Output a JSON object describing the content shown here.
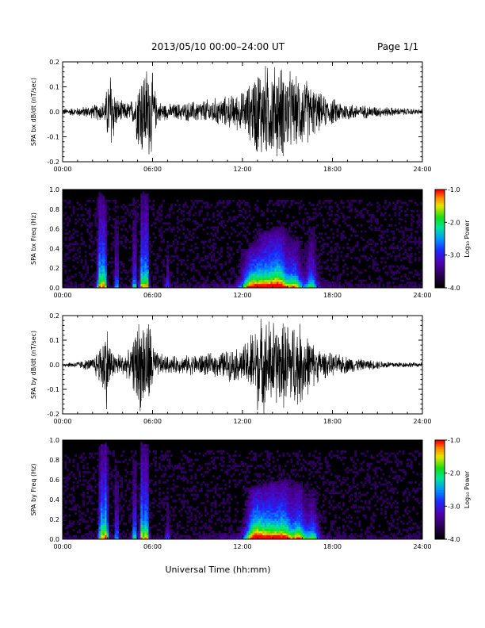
{
  "header": {
    "title": "2013/05/10   00:00–24:00 UT",
    "page": "Page 1/1"
  },
  "chart_data": [
    {
      "type": "line",
      "title": "",
      "ylabel": "SPA bx dB/dt (nT/sec)",
      "xlabel": "",
      "x_range": [
        "00:00",
        "24:00"
      ],
      "ylim": [
        -0.2,
        0.2
      ],
      "y_ticks": [
        "-0.2",
        "-0.1",
        "0.0",
        "0.1",
        "0.2"
      ],
      "x_ticks": [
        "00:00",
        "06:00",
        "12:00",
        "18:00",
        "24:00"
      ],
      "envelope": {
        "hours": [
          0,
          1,
          2,
          2.8,
          3.2,
          3.6,
          4.2,
          4.8,
          5.1,
          5.5,
          5.9,
          6.3,
          7,
          8,
          9,
          10,
          11,
          12,
          12.5,
          13,
          13.5,
          14,
          14.5,
          15,
          15.5,
          16,
          16.5,
          17,
          17.5,
          18,
          19,
          20,
          21,
          22,
          23,
          24
        ],
        "amplitude": [
          0.015,
          0.02,
          0.03,
          0.05,
          0.21,
          0.06,
          0.04,
          0.06,
          0.2,
          0.21,
          0.21,
          0.05,
          0.035,
          0.04,
          0.05,
          0.06,
          0.07,
          0.09,
          0.13,
          0.21,
          0.21,
          0.21,
          0.21,
          0.2,
          0.15,
          0.17,
          0.13,
          0.09,
          0.07,
          0.06,
          0.04,
          0.03,
          0.025,
          0.02,
          0.015,
          0.012
        ]
      },
      "grid": false
    },
    {
      "type": "heatmap",
      "title": "",
      "ylabel": "SPA bx Freq (Hz)",
      "xlabel": "",
      "x_range": [
        "00:00",
        "24:00"
      ],
      "ylim": [
        0.0,
        1.0
      ],
      "y_ticks": [
        "0.0",
        "0.2",
        "0.4",
        "0.6",
        "0.8",
        "1.0"
      ],
      "x_ticks": [
        "00:00",
        "06:00",
        "12:00",
        "18:00",
        "24:00"
      ],
      "colorbar": {
        "label": "Log₁₀ Power",
        "range": [
          -4.0,
          -1.0
        ],
        "ticks": [
          "-1.0",
          "-2.0",
          "-3.0",
          "-4.0"
        ]
      },
      "bursts": [
        {
          "hour": 2.5,
          "width": 0.2,
          "strength": 0.8,
          "height": 0.95
        },
        {
          "hour": 2.8,
          "width": 0.15,
          "strength": 0.75,
          "height": 0.9
        },
        {
          "hour": 3.6,
          "width": 0.12,
          "strength": 0.5,
          "height": 0.9
        },
        {
          "hour": 4.8,
          "width": 0.15,
          "strength": 0.55,
          "height": 0.9
        },
        {
          "hour": 5.3,
          "width": 0.15,
          "strength": 0.8,
          "height": 0.95
        },
        {
          "hour": 5.6,
          "width": 0.15,
          "strength": 0.85,
          "height": 0.95
        },
        {
          "hour": 7.0,
          "width": 0.15,
          "strength": 0.3,
          "height": 0.6
        },
        {
          "hour": 12.5,
          "width": 0.6,
          "strength": 0.6,
          "height": 0.4
        },
        {
          "hour": 13.5,
          "width": 0.8,
          "strength": 0.75,
          "height": 0.55
        },
        {
          "hour": 14.5,
          "width": 0.6,
          "strength": 0.7,
          "height": 0.6
        },
        {
          "hour": 15.5,
          "width": 0.5,
          "strength": 0.6,
          "height": 0.5
        },
        {
          "hour": 16.6,
          "width": 0.4,
          "strength": 0.5,
          "height": 0.6
        }
      ]
    },
    {
      "type": "line",
      "title": "",
      "ylabel": "SPA by dB/dt (nT/sec)",
      "xlabel": "",
      "x_range": [
        "00:00",
        "24:00"
      ],
      "ylim": [
        -0.2,
        0.2
      ],
      "y_ticks": [
        "-0.2",
        "-0.1",
        "0.0",
        "0.1",
        "0.2"
      ],
      "x_ticks": [
        "00:00",
        "06:00",
        "12:00",
        "18:00",
        "24:00"
      ],
      "envelope": {
        "hours": [
          0,
          1,
          2,
          2.5,
          2.9,
          3.3,
          4,
          4.6,
          5.0,
          5.4,
          5.8,
          6.2,
          7,
          8,
          9,
          10,
          11,
          12,
          12.5,
          13,
          13.5,
          14,
          14.5,
          15,
          15.5,
          16,
          16.5,
          17,
          17.5,
          18,
          19,
          20,
          21,
          22,
          23,
          24
        ],
        "amplitude": [
          0.01,
          0.015,
          0.03,
          0.09,
          0.21,
          0.06,
          0.05,
          0.07,
          0.21,
          0.21,
          0.21,
          0.06,
          0.04,
          0.04,
          0.05,
          0.05,
          0.07,
          0.08,
          0.14,
          0.21,
          0.21,
          0.21,
          0.18,
          0.21,
          0.2,
          0.18,
          0.12,
          0.08,
          0.06,
          0.05,
          0.04,
          0.025,
          0.02,
          0.015,
          0.012,
          0.01
        ]
      },
      "grid": false
    },
    {
      "type": "heatmap",
      "title": "",
      "ylabel": "SPA by Freq (Hz)",
      "xlabel": "Universal Time (hh:mm)",
      "x_range": [
        "00:00",
        "24:00"
      ],
      "ylim": [
        0.0,
        1.0
      ],
      "y_ticks": [
        "0.0",
        "0.2",
        "0.4",
        "0.6",
        "0.8",
        "1.0"
      ],
      "x_ticks": [
        "00:00",
        "06:00",
        "12:00",
        "18:00",
        "24:00"
      ],
      "colorbar": {
        "label": "Log₁₀ Power",
        "range": [
          -4.0,
          -1.0
        ],
        "ticks": [
          "-1.0",
          "-2.0",
          "-3.0",
          "-4.0"
        ]
      },
      "bursts": [
        {
          "hour": 2.6,
          "width": 0.2,
          "strength": 0.8,
          "height": 0.95
        },
        {
          "hour": 2.9,
          "width": 0.15,
          "strength": 0.8,
          "height": 0.95
        },
        {
          "hour": 3.6,
          "width": 0.12,
          "strength": 0.5,
          "height": 0.9
        },
        {
          "hour": 4.8,
          "width": 0.15,
          "strength": 0.6,
          "height": 0.9
        },
        {
          "hour": 5.3,
          "width": 0.15,
          "strength": 0.85,
          "height": 0.95
        },
        {
          "hour": 5.6,
          "width": 0.15,
          "strength": 0.85,
          "height": 0.95
        },
        {
          "hour": 7.0,
          "width": 0.15,
          "strength": 0.3,
          "height": 0.6
        },
        {
          "hour": 12.8,
          "width": 0.6,
          "strength": 0.8,
          "height": 0.5
        },
        {
          "hour": 13.8,
          "width": 0.7,
          "strength": 0.75,
          "height": 0.55
        },
        {
          "hour": 14.8,
          "width": 0.6,
          "strength": 0.7,
          "height": 0.6
        },
        {
          "hour": 15.8,
          "width": 0.5,
          "strength": 0.65,
          "height": 0.55
        },
        {
          "hour": 16.7,
          "width": 0.4,
          "strength": 0.5,
          "height": 0.5
        }
      ]
    }
  ]
}
